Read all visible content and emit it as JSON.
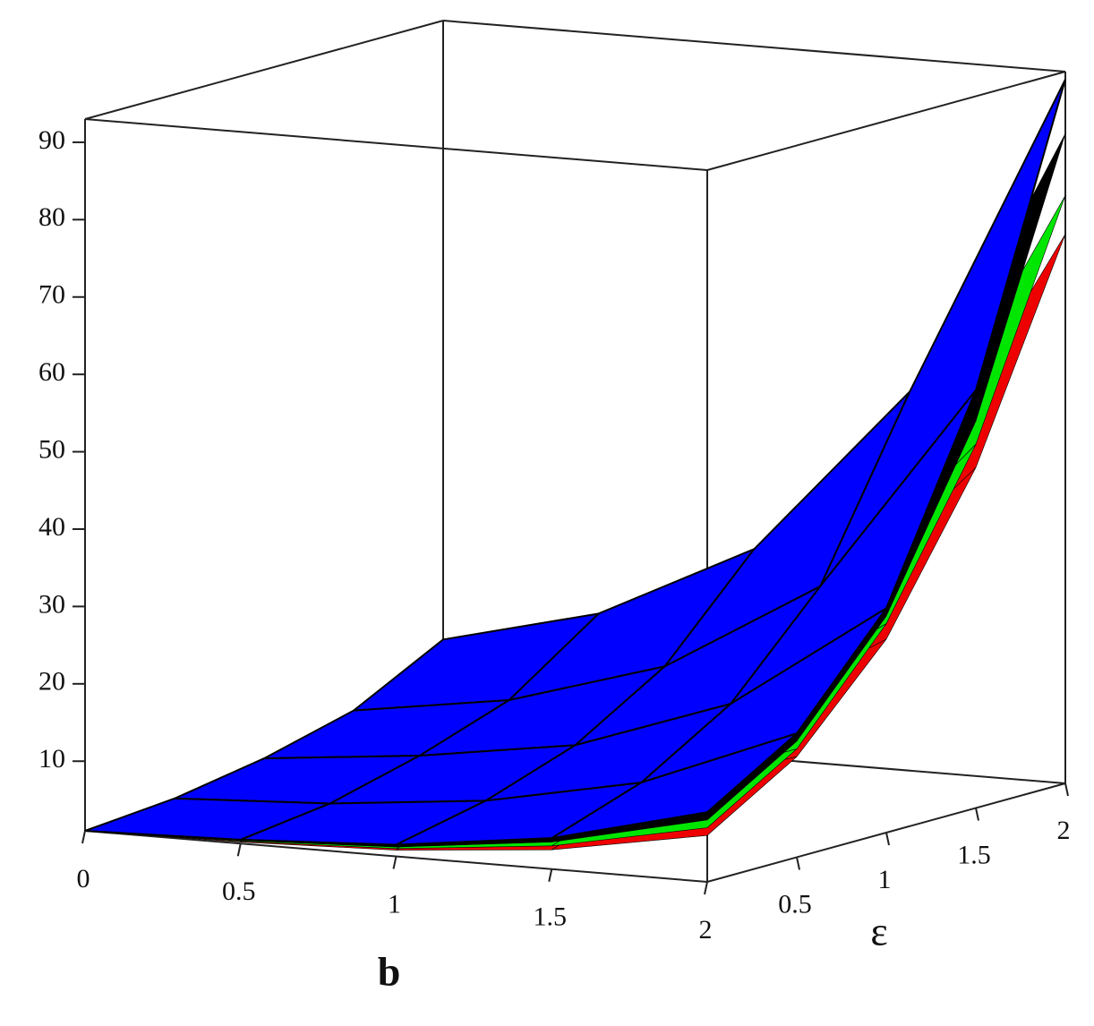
{
  "chart_data": {
    "type": "surface3d",
    "xlabel": "b",
    "ylabel": "ε",
    "x": [
      0,
      0.5,
      1,
      1.5,
      2
    ],
    "y": [
      0,
      0.5,
      1,
      1.5,
      2
    ],
    "xlim": [
      0,
      2
    ],
    "ylim": [
      0,
      2
    ],
    "zlim": [
      1,
      93
    ],
    "xticks": [
      0,
      0.5,
      1,
      1.5,
      2
    ],
    "yticks": [
      0.5,
      1,
      1.5,
      2
    ],
    "zticks": [
      10,
      20,
      30,
      40,
      50,
      60,
      70,
      80,
      90
    ],
    "series": [
      {
        "color": "#ee0000",
        "values": [
          [
            1,
            1.2,
            1.8,
            3.5,
            7
          ],
          [
            1.8,
            2.6,
            4,
            7.5,
            14
          ],
          [
            3.5,
            5,
            8,
            14,
            26
          ],
          [
            6,
            8.5,
            13,
            24,
            45
          ],
          [
            9,
            13,
            20,
            37,
            72
          ]
        ]
      },
      {
        "color": "#00e600",
        "values": [
          [
            1,
            1.3,
            2,
            4,
            8
          ],
          [
            1.9,
            2.8,
            4.4,
            8,
            15
          ],
          [
            3.7,
            5.3,
            8.5,
            15,
            28
          ],
          [
            6.4,
            9,
            14,
            26,
            48
          ],
          [
            10,
            14,
            22,
            40,
            77
          ]
        ]
      },
      {
        "color": "#000000",
        "values": [
          [
            1,
            1.4,
            2.2,
            4.5,
            9
          ],
          [
            2,
            3,
            4.7,
            8.5,
            16
          ],
          [
            3.8,
            5.6,
            9,
            16,
            29
          ],
          [
            6.7,
            9.5,
            15,
            27,
            51
          ],
          [
            11,
            16,
            25,
            45,
            85
          ]
        ]
      },
      {
        "color": "#0000ff",
        "values": [
          [
            1,
            1.5,
            2.5,
            5,
            10
          ],
          [
            2,
            3,
            5,
            9,
            17
          ],
          [
            4,
            6,
            9,
            16,
            30
          ],
          [
            7,
            10,
            16,
            28,
            55
          ],
          [
            13,
            18,
            28,
            50,
            92
          ]
        ]
      }
    ]
  }
}
